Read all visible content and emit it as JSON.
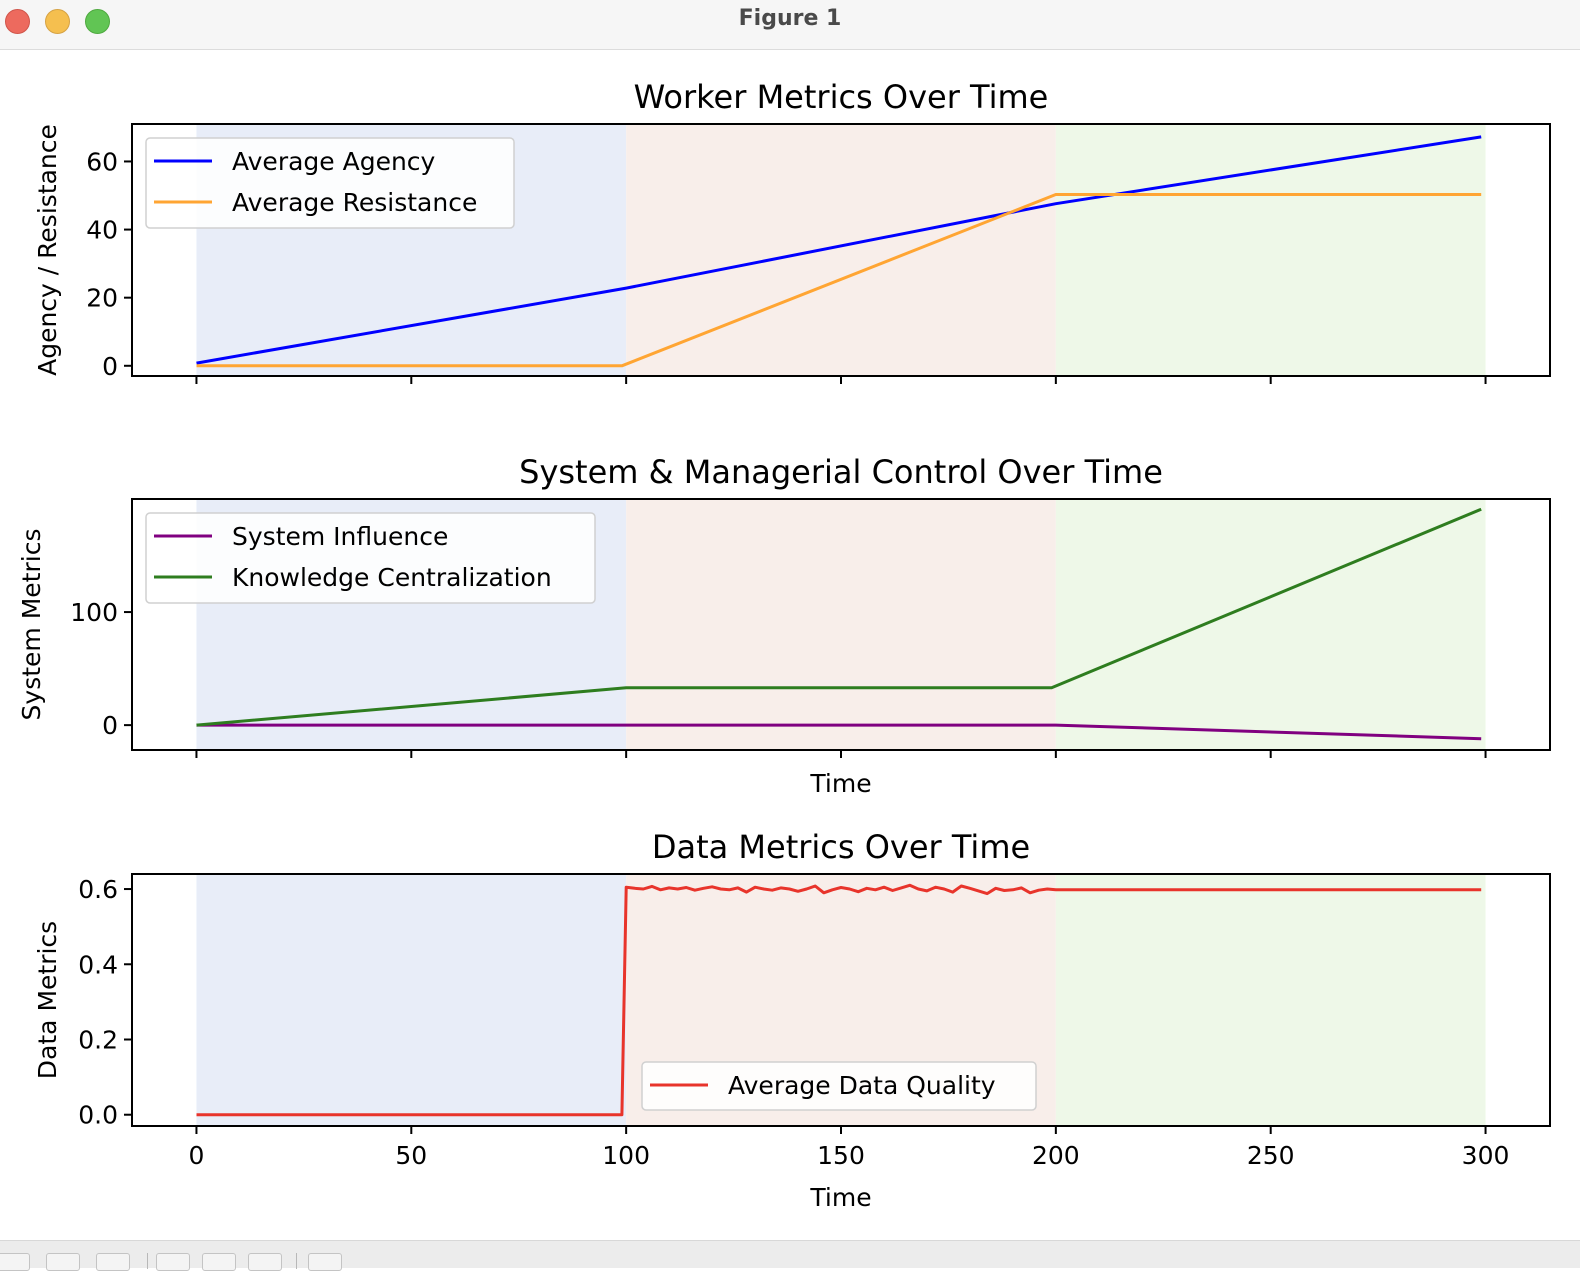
{
  "window": {
    "title": "Figure 1"
  },
  "chart_data": [
    {
      "type": "line",
      "title": "Worker Metrics Over Time",
      "xlabel": "",
      "ylabel": "Agency / Resistance",
      "xlim": [
        -15,
        315
      ],
      "ylim": [
        -3,
        71
      ],
      "xticks": [
        0,
        50,
        100,
        150,
        200,
        250,
        300
      ],
      "yticks": [
        0,
        20,
        40,
        60
      ],
      "show_xticklabels": false,
      "legend_position": "upper left",
      "series": [
        {
          "name": "Average Agency",
          "color": "#0000ff",
          "x": [
            0,
            100,
            200,
            299
          ],
          "y": [
            0.8,
            22.8,
            47.6,
            67.2
          ]
        },
        {
          "name": "Average Resistance",
          "color": "#ffa533",
          "x": [
            0,
            99,
            200,
            299
          ],
          "y": [
            0,
            0,
            50.3,
            50.3
          ]
        }
      ]
    },
    {
      "type": "line",
      "title": "System & Managerial Control Over Time",
      "xlabel": "Time",
      "ylabel": "System Metrics",
      "xlim": [
        -15,
        315
      ],
      "ylim": [
        -22,
        200
      ],
      "xticks": [
        0,
        50,
        100,
        150,
        200,
        250,
        300
      ],
      "yticks": [
        0,
        100
      ],
      "show_xticklabels": false,
      "legend_position": "upper left",
      "series": [
        {
          "name": "System Influence",
          "color": "#800080",
          "x": [
            0,
            100,
            200,
            299
          ],
          "y": [
            0,
            0,
            0,
            -12
          ]
        },
        {
          "name": "Knowledge Centralization",
          "color": "#2e7d1f",
          "x": [
            0,
            100,
            199,
            299
          ],
          "y": [
            0,
            33,
            33,
            191
          ]
        }
      ]
    },
    {
      "type": "line",
      "title": "Data Metrics Over Time",
      "xlabel": "Time",
      "ylabel": "Data Metrics",
      "xlim": [
        -15,
        315
      ],
      "ylim": [
        -0.03,
        0.64
      ],
      "xticks": [
        0,
        50,
        100,
        150,
        200,
        250,
        300
      ],
      "yticks": [
        0.0,
        0.2,
        0.4,
        0.6
      ],
      "show_xticklabels": true,
      "legend_position": "lower center",
      "series": [
        {
          "name": "Average Data Quality",
          "color": "#e8342b",
          "x": [
            0,
            99,
            100,
            102,
            104,
            106,
            108,
            110,
            112,
            114,
            116,
            118,
            120,
            122,
            124,
            126,
            128,
            130,
            132,
            134,
            136,
            138,
            140,
            142,
            144,
            146,
            148,
            150,
            152,
            154,
            156,
            158,
            160,
            162,
            164,
            166,
            168,
            170,
            172,
            174,
            176,
            178,
            180,
            182,
            184,
            186,
            188,
            190,
            192,
            194,
            196,
            198,
            200,
            250,
            299
          ],
          "y": [
            0.0,
            0.0,
            0.605,
            0.602,
            0.6,
            0.607,
            0.598,
            0.603,
            0.6,
            0.604,
            0.597,
            0.602,
            0.606,
            0.6,
            0.598,
            0.603,
            0.592,
            0.605,
            0.6,
            0.597,
            0.603,
            0.6,
            0.594,
            0.6,
            0.608,
            0.59,
            0.598,
            0.604,
            0.6,
            0.593,
            0.602,
            0.598,
            0.605,
            0.596,
            0.603,
            0.61,
            0.6,
            0.595,
            0.605,
            0.6,
            0.592,
            0.608,
            0.602,
            0.595,
            0.588,
            0.602,
            0.596,
            0.598,
            0.603,
            0.59,
            0.597,
            0.6,
            0.598,
            0.598,
            0.598
          ]
        }
      ]
    }
  ],
  "phases": [
    {
      "start": 0,
      "end": 100,
      "color": "#e8edf8"
    },
    {
      "start": 100,
      "end": 200,
      "color": "#f8eeea"
    },
    {
      "start": 200,
      "end": 300,
      "color": "#eef8e8"
    }
  ]
}
